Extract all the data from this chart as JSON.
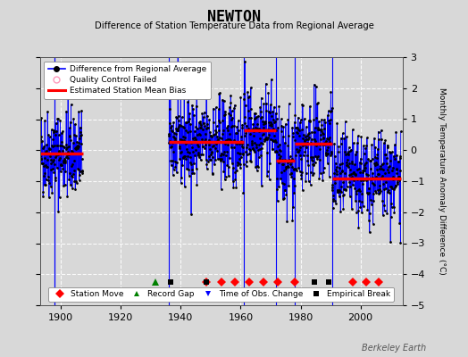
{
  "title": "NEWTON",
  "subtitle": "Difference of Station Temperature Data from Regional Average",
  "ylabel_right": "Monthly Temperature Anomaly Difference (°C)",
  "xlim": [
    1893,
    2014
  ],
  "ylim": [
    -5,
    3
  ],
  "yticks": [
    -5,
    -4,
    -3,
    -2,
    -1,
    0,
    1,
    2,
    3
  ],
  "xticks": [
    1900,
    1920,
    1940,
    1960,
    1980,
    2000
  ],
  "bg_color": "#d8d8d8",
  "grid_color": "#ffffff",
  "watermark": "Berkeley Earth",
  "seg_data": [
    [
      1893.0,
      1907.3,
      -0.1
    ],
    [
      1936.0,
      1961.0,
      0.28
    ],
    [
      1961.0,
      1971.8,
      0.65
    ],
    [
      1971.8,
      1978.2,
      -0.35
    ],
    [
      1978.2,
      1990.5,
      0.22
    ],
    [
      1990.5,
      2013.5,
      -0.9
    ]
  ],
  "bias_lines": [
    [
      1893.0,
      1907.3,
      -0.1
    ],
    [
      1936.0,
      1961.0,
      0.28
    ],
    [
      1961.0,
      1971.8,
      0.65
    ],
    [
      1971.8,
      1978.2,
      -0.35
    ],
    [
      1978.2,
      1990.5,
      0.22
    ],
    [
      1990.5,
      2013.5,
      -0.9
    ]
  ],
  "vlines": [
    1936.0,
    1961.0,
    1971.8,
    1978.2,
    1990.5
  ],
  "gap_vline_x": 1897.8,
  "station_moves": [
    1948.5,
    1953.5,
    1958.0,
    1963.0,
    1967.5,
    1972.5,
    1978.2,
    1997.5,
    2002.0,
    2006.0
  ],
  "record_gaps": [
    1931.5
  ],
  "empirical_breaks": [
    1936.5,
    1948.5,
    1984.5,
    1989.5
  ],
  "time_obs_changes": [],
  "marker_y": -4.25,
  "seed": 42,
  "noise_std": 0.72
}
